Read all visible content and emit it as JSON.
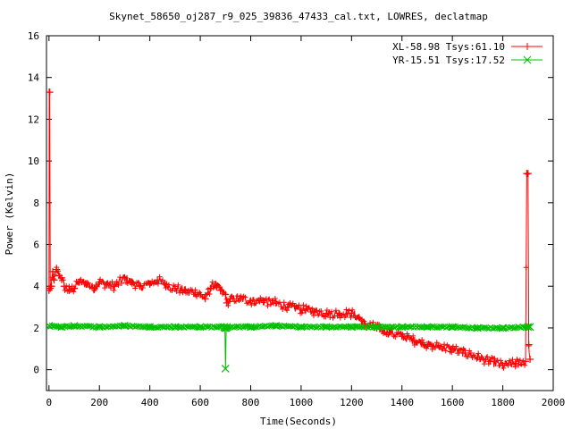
{
  "chart_data": {
    "type": "line",
    "title": "Skynet_58650_oj287_r9_025_39836_47433_cal.txt, LOWRES, declatmap",
    "xlabel": "Time(Seconds)",
    "ylabel": "Power (Kelvin)",
    "xlim": [
      -10,
      2000
    ],
    "ylim": [
      -1,
      16
    ],
    "xticks": [
      0,
      200,
      400,
      600,
      800,
      1000,
      1200,
      1400,
      1600,
      1800,
      2000
    ],
    "yticks": [
      0,
      2,
      4,
      6,
      8,
      10,
      12,
      14,
      16
    ],
    "grid": false,
    "legend_position": "top-right",
    "series": [
      {
        "name": "XL-58.98 Tsys:61.10",
        "color": "#ff0000",
        "marker": "plus",
        "points": [
          [
            0,
            3.8
          ],
          [
            1,
            13.3
          ],
          [
            3,
            13.3
          ],
          [
            5,
            3.9
          ],
          [
            10,
            4.0
          ],
          [
            15,
            4.7
          ],
          [
            20,
            4.3
          ],
          [
            30,
            4.8
          ],
          [
            40,
            4.5
          ],
          [
            50,
            4.4
          ],
          [
            60,
            4.0
          ],
          [
            80,
            3.8
          ],
          [
            100,
            3.9
          ],
          [
            120,
            4.2
          ],
          [
            150,
            4.1
          ],
          [
            180,
            3.9
          ],
          [
            200,
            4.2
          ],
          [
            230,
            4.1
          ],
          [
            260,
            4.0
          ],
          [
            300,
            4.4
          ],
          [
            330,
            4.2
          ],
          [
            360,
            4.0
          ],
          [
            400,
            4.1
          ],
          [
            430,
            4.3
          ],
          [
            460,
            4.1
          ],
          [
            500,
            3.9
          ],
          [
            540,
            3.8
          ],
          [
            580,
            3.7
          ],
          [
            600,
            3.6
          ],
          [
            620,
            3.4
          ],
          [
            640,
            3.9
          ],
          [
            660,
            4.1
          ],
          [
            680,
            3.8
          ],
          [
            700,
            3.6
          ],
          [
            705,
            3.2
          ],
          [
            720,
            3.4
          ],
          [
            760,
            3.4
          ],
          [
            800,
            3.3
          ],
          [
            850,
            3.3
          ],
          [
            900,
            3.2
          ],
          [
            950,
            3.0
          ],
          [
            1000,
            2.9
          ],
          [
            1050,
            2.8
          ],
          [
            1100,
            2.7
          ],
          [
            1150,
            2.7
          ],
          [
            1200,
            2.7
          ],
          [
            1230,
            2.5
          ],
          [
            1250,
            2.2
          ],
          [
            1300,
            2.0
          ],
          [
            1350,
            1.8
          ],
          [
            1400,
            1.6
          ],
          [
            1450,
            1.4
          ],
          [
            1500,
            1.2
          ],
          [
            1550,
            1.1
          ],
          [
            1600,
            1.0
          ],
          [
            1650,
            0.8
          ],
          [
            1700,
            0.6
          ],
          [
            1750,
            0.4
          ],
          [
            1800,
            0.2
          ],
          [
            1850,
            0.3
          ],
          [
            1890,
            0.4
          ],
          [
            1895,
            9.4
          ],
          [
            1900,
            9.4
          ],
          [
            1903,
            1.2
          ],
          [
            1908,
            0.5
          ]
        ]
      },
      {
        "name": "YR-15.51 Tsys:17.52",
        "color": "#00c000",
        "marker": "cross",
        "points": [
          [
            0,
            2.1
          ],
          [
            50,
            2.05
          ],
          [
            100,
            2.1
          ],
          [
            200,
            2.05
          ],
          [
            300,
            2.1
          ],
          [
            400,
            2.05
          ],
          [
            500,
            2.05
          ],
          [
            600,
            2.05
          ],
          [
            695,
            2.05
          ],
          [
            698,
            2.0
          ],
          [
            700,
            0.05
          ],
          [
            703,
            2.0
          ],
          [
            706,
            2.05
          ],
          [
            800,
            2.05
          ],
          [
            900,
            2.1
          ],
          [
            1000,
            2.05
          ],
          [
            1100,
            2.05
          ],
          [
            1200,
            2.05
          ],
          [
            1300,
            2.05
          ],
          [
            1400,
            2.05
          ],
          [
            1500,
            2.05
          ],
          [
            1600,
            2.05
          ],
          [
            1700,
            2.0
          ],
          [
            1800,
            2.0
          ],
          [
            1900,
            2.05
          ],
          [
            1908,
            2.05
          ]
        ]
      }
    ]
  }
}
